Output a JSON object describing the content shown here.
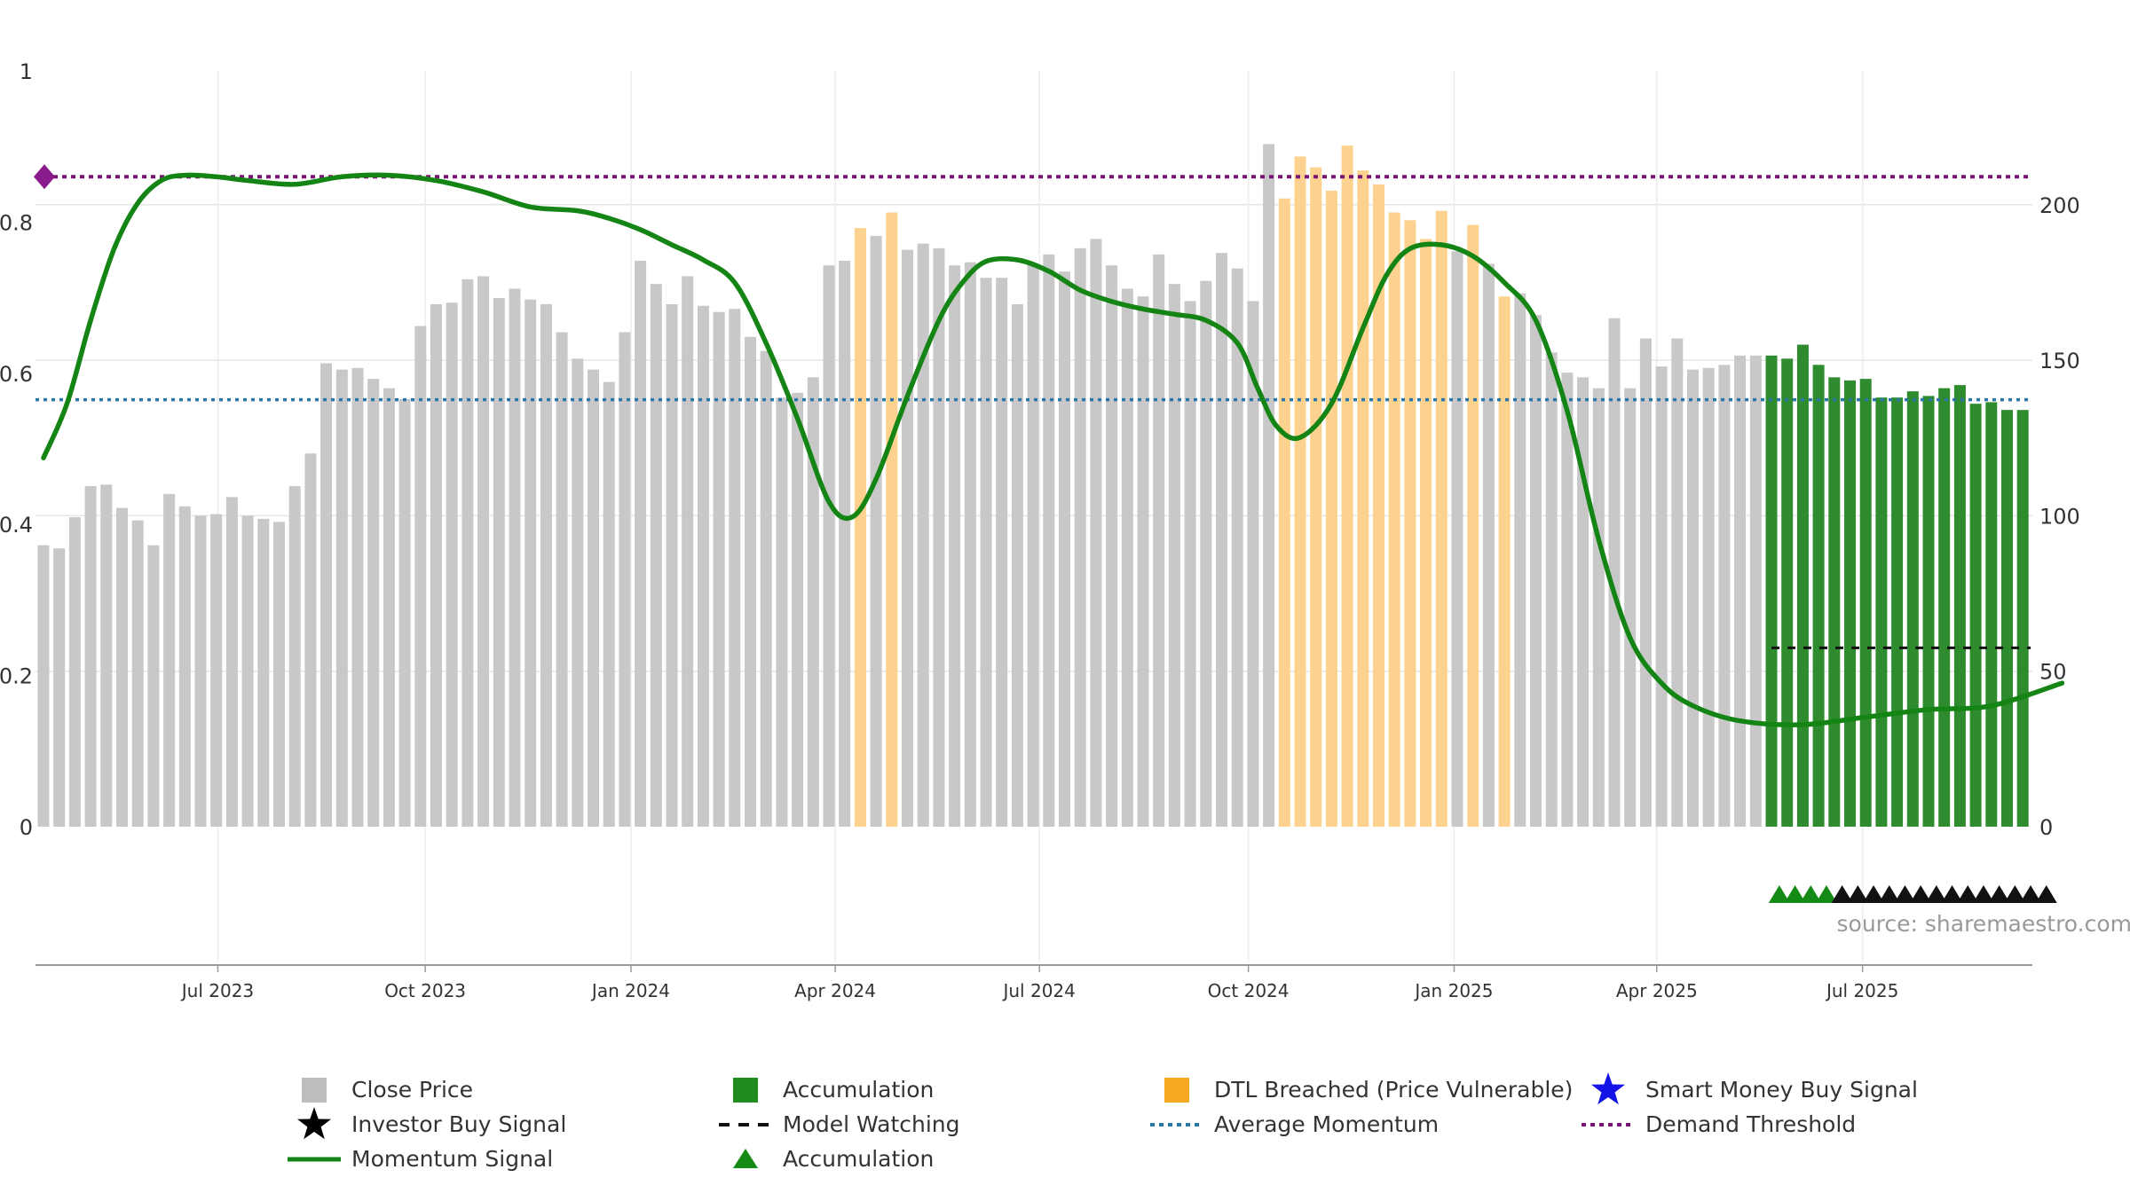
{
  "source_text": "source: sharemaestro.com",
  "chart_data": {
    "type": "bar",
    "title": "",
    "xlabel": "",
    "ylabel": "",
    "left_axis": {
      "range": [
        0,
        1.0
      ],
      "ticks": [
        "0",
        "0.2",
        "0.4",
        "0.6",
        "0.8",
        "1"
      ]
    },
    "right_axis": {
      "range": [
        0,
        231.6
      ],
      "ticks": [
        "0",
        "50",
        "100",
        "150",
        "200"
      ]
    },
    "x_ticks": [
      "Jul 2023",
      "Oct 2023",
      "Jan 2024",
      "Apr 2024",
      "Jul 2024",
      "Oct 2024",
      "Jan 2025",
      "Apr 2025",
      "Jul 2025"
    ],
    "x_tick_positions_weeks": [
      11.1,
      24.3,
      37.4,
      50.4,
      63.4,
      76.7,
      89.8,
      102.7,
      115.8
    ],
    "close_price": [
      90.5,
      89.5,
      99.5,
      109.5,
      110.0,
      102.5,
      98.5,
      90.5,
      107.0,
      103.0,
      100.0,
      100.5,
      106.0,
      100.0,
      99.0,
      98.0,
      109.5,
      120.0,
      149.0,
      147.0,
      147.5,
      144.0,
      141.0,
      137.5,
      161.0,
      168.0,
      168.5,
      176.0,
      177.0,
      170.0,
      173.0,
      169.5,
      168.0,
      159.0,
      150.5,
      147.0,
      143.0,
      159.0,
      182.0,
      174.5,
      168.0,
      177.0,
      167.5,
      165.5,
      166.5,
      157.5,
      153.0,
      138.0,
      139.5,
      144.5,
      180.5,
      182.0,
      192.5,
      190.0,
      197.5,
      185.5,
      187.5,
      186.0,
      180.5,
      181.5,
      176.5,
      176.5,
      168.0,
      181.0,
      184.0,
      178.5,
      186.0,
      189.0,
      180.5,
      173.0,
      170.5,
      184.0,
      174.5,
      169.0,
      175.5,
      184.5,
      179.5,
      169.0,
      219.5,
      202.0,
      215.5,
      212.0,
      204.5,
      219.0,
      211.0,
      206.5,
      197.5,
      195.0,
      189.0,
      198.0,
      185.0,
      193.5,
      181.0,
      170.5,
      171.5,
      164.5,
      152.5,
      146.0,
      144.5,
      141.0,
      163.5,
      141.0,
      157.0,
      148.0,
      157.0,
      147.0,
      147.5,
      148.5,
      151.5,
      151.5,
      151.5,
      150.5,
      155.0,
      148.5,
      144.5,
      143.5,
      144.0,
      138.0,
      138.0,
      140.0,
      138.5,
      141.0,
      142.0,
      136.0,
      136.5,
      134.0,
      134.0
    ],
    "bar_category": "index ranges: 0-51 Close Price (grey), 52-54 DTL Breached (orange: 52,54; 53 grey), 55-78 grey, 79-89 DTL Breached, 90-91 grey/orange alternating, 110-127 Accumulation (green)",
    "dtl_indices": [
      52,
      54,
      79,
      80,
      81,
      82,
      83,
      84,
      85,
      86,
      87,
      88,
      89,
      91,
      93
    ],
    "accumulation_start_index": 110,
    "momentum": {
      "weeks": [
        0,
        1.5,
        3,
        4.5,
        6,
        7.5,
        9,
        11,
        13,
        16,
        19,
        22,
        25,
        28,
        31,
        34,
        36,
        38,
        40,
        42,
        44,
        46,
        48,
        50,
        51.5,
        53,
        55,
        57,
        58.5,
        60,
        62,
        64,
        66,
        68,
        70,
        72,
        74,
        76,
        77.3,
        78.5,
        80,
        82,
        84,
        85.5,
        87,
        89,
        91,
        93,
        95,
        97,
        99,
        101,
        103,
        105,
        108,
        112,
        116,
        120,
        124,
        128.5
      ],
      "values": [
        0.488,
        0.56,
        0.67,
        0.765,
        0.825,
        0.855,
        0.862,
        0.86,
        0.855,
        0.85,
        0.86,
        0.862,
        0.855,
        0.84,
        0.82,
        0.815,
        0.805,
        0.79,
        0.77,
        0.75,
        0.72,
        0.64,
        0.54,
        0.43,
        0.41,
        0.46,
        0.57,
        0.67,
        0.72,
        0.748,
        0.75,
        0.735,
        0.71,
        0.695,
        0.685,
        0.678,
        0.67,
        0.64,
        0.58,
        0.53,
        0.515,
        0.56,
        0.66,
        0.73,
        0.765,
        0.77,
        0.755,
        0.72,
        0.67,
        0.55,
        0.38,
        0.25,
        0.19,
        0.16,
        0.14,
        0.135,
        0.145,
        0.155,
        0.16,
        0.19
      ]
    },
    "average_momentum": 0.565,
    "demand_threshold": 0.86,
    "model_watching_level_right": 57.5,
    "accumulation_markers_weeks": [
      110.5,
      111.5,
      112.5,
      113.5
    ],
    "watching_markers_weeks": [
      114.5,
      115.5,
      116.5,
      117.5,
      118.5,
      119.5,
      120.5,
      121.5,
      122.5,
      123.5,
      124.5,
      125.5,
      126.5,
      127.5
    ],
    "colors": {
      "close_price": "#c8c8c8",
      "dtl": "#fcd28e",
      "accumulation": "#2e8b2e",
      "momentum": "#148514",
      "average_momentum": "#2a77a8",
      "demand_threshold": "#7a1575",
      "model_watching": "#111111",
      "smart_money": "#1414e6",
      "investor_buy": "#000000",
      "threshold_marker": "#8a1b8c"
    },
    "legend": [
      {
        "label": "Close Price",
        "icon": "grey-square"
      },
      {
        "label": "Accumulation",
        "icon": "green-square"
      },
      {
        "label": "DTL Breached (Price Vulnerable)",
        "icon": "orange-square"
      },
      {
        "label": "Smart Money Buy Signal",
        "icon": "blue-star"
      },
      {
        "label": "Investor Buy Signal",
        "icon": "black-star"
      },
      {
        "label": "Model Watching",
        "icon": "black-dashed-line"
      },
      {
        "label": "Average Momentum",
        "icon": "blue-dotted-line"
      },
      {
        "label": "Demand Threshold",
        "icon": "purple-dotted-line"
      },
      {
        "label": "Momentum Signal",
        "icon": "green-line"
      },
      {
        "label": "Accumulation",
        "icon": "green-triangle"
      }
    ],
    "grid": true,
    "legend_position": "bottom"
  }
}
